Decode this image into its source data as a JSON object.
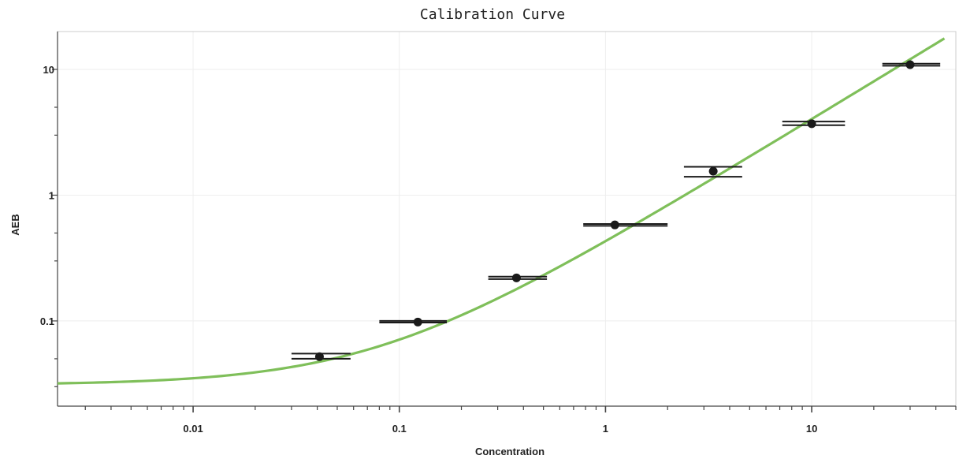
{
  "chart_data": {
    "type": "scatter",
    "title": "Calibration Curve",
    "xlabel": "Concentration",
    "ylabel": "AEB",
    "x_scale": "log",
    "y_scale": "log",
    "xlim": [
      0.0022,
      50
    ],
    "ylim": [
      0.021,
      20
    ],
    "grid": true,
    "x_tick_labels": [
      {
        "value": 0.01,
        "label": "0.01"
      },
      {
        "value": 0.1,
        "label": "0.1"
      },
      {
        "value": 1,
        "label": "1"
      },
      {
        "value": 10,
        "label": "10"
      }
    ],
    "y_tick_labels": [
      {
        "value": 0.1,
        "label": "0.1"
      },
      {
        "value": 1,
        "label": "1"
      },
      {
        "value": 10,
        "label": "10"
      }
    ],
    "points": [
      {
        "x": 0.041,
        "y": 0.052,
        "y_err_low": 0.05,
        "y_err_high": 0.055,
        "x_err_low": 0.03,
        "x_err_high": 0.058
      },
      {
        "x": 0.123,
        "y": 0.098,
        "y_err_low": 0.097,
        "y_err_high": 0.1,
        "x_err_low": 0.08,
        "x_err_high": 0.17
      },
      {
        "x": 0.37,
        "y": 0.22,
        "y_err_low": 0.215,
        "y_err_high": 0.225,
        "x_err_low": 0.27,
        "x_err_high": 0.52
      },
      {
        "x": 1.11,
        "y": 0.58,
        "y_err_low": 0.57,
        "y_err_high": 0.59,
        "x_err_low": 0.78,
        "x_err_high": 2.0
      },
      {
        "x": 3.33,
        "y": 1.55,
        "y_err_low": 1.4,
        "y_err_high": 1.68,
        "x_err_low": 2.4,
        "x_err_high": 4.6
      },
      {
        "x": 10,
        "y": 3.7,
        "y_err_low": 3.6,
        "y_err_high": 3.85,
        "x_err_low": 7.2,
        "x_err_high": 14.5
      },
      {
        "x": 30,
        "y": 10.9,
        "y_err_low": 10.7,
        "y_err_high": 11.1,
        "x_err_low": 22,
        "x_err_high": 42
      }
    ],
    "fit_curve": {
      "type": "line",
      "color": "#7fbf5a",
      "model": "linear_plus_background",
      "params": {
        "background": 0.031,
        "slope": 0.4
      }
    },
    "colors": {
      "point": "#1a1a1a",
      "error_bar": "#1a1a1a",
      "axis": "#444444",
      "grid": "#eeeeee"
    }
  }
}
